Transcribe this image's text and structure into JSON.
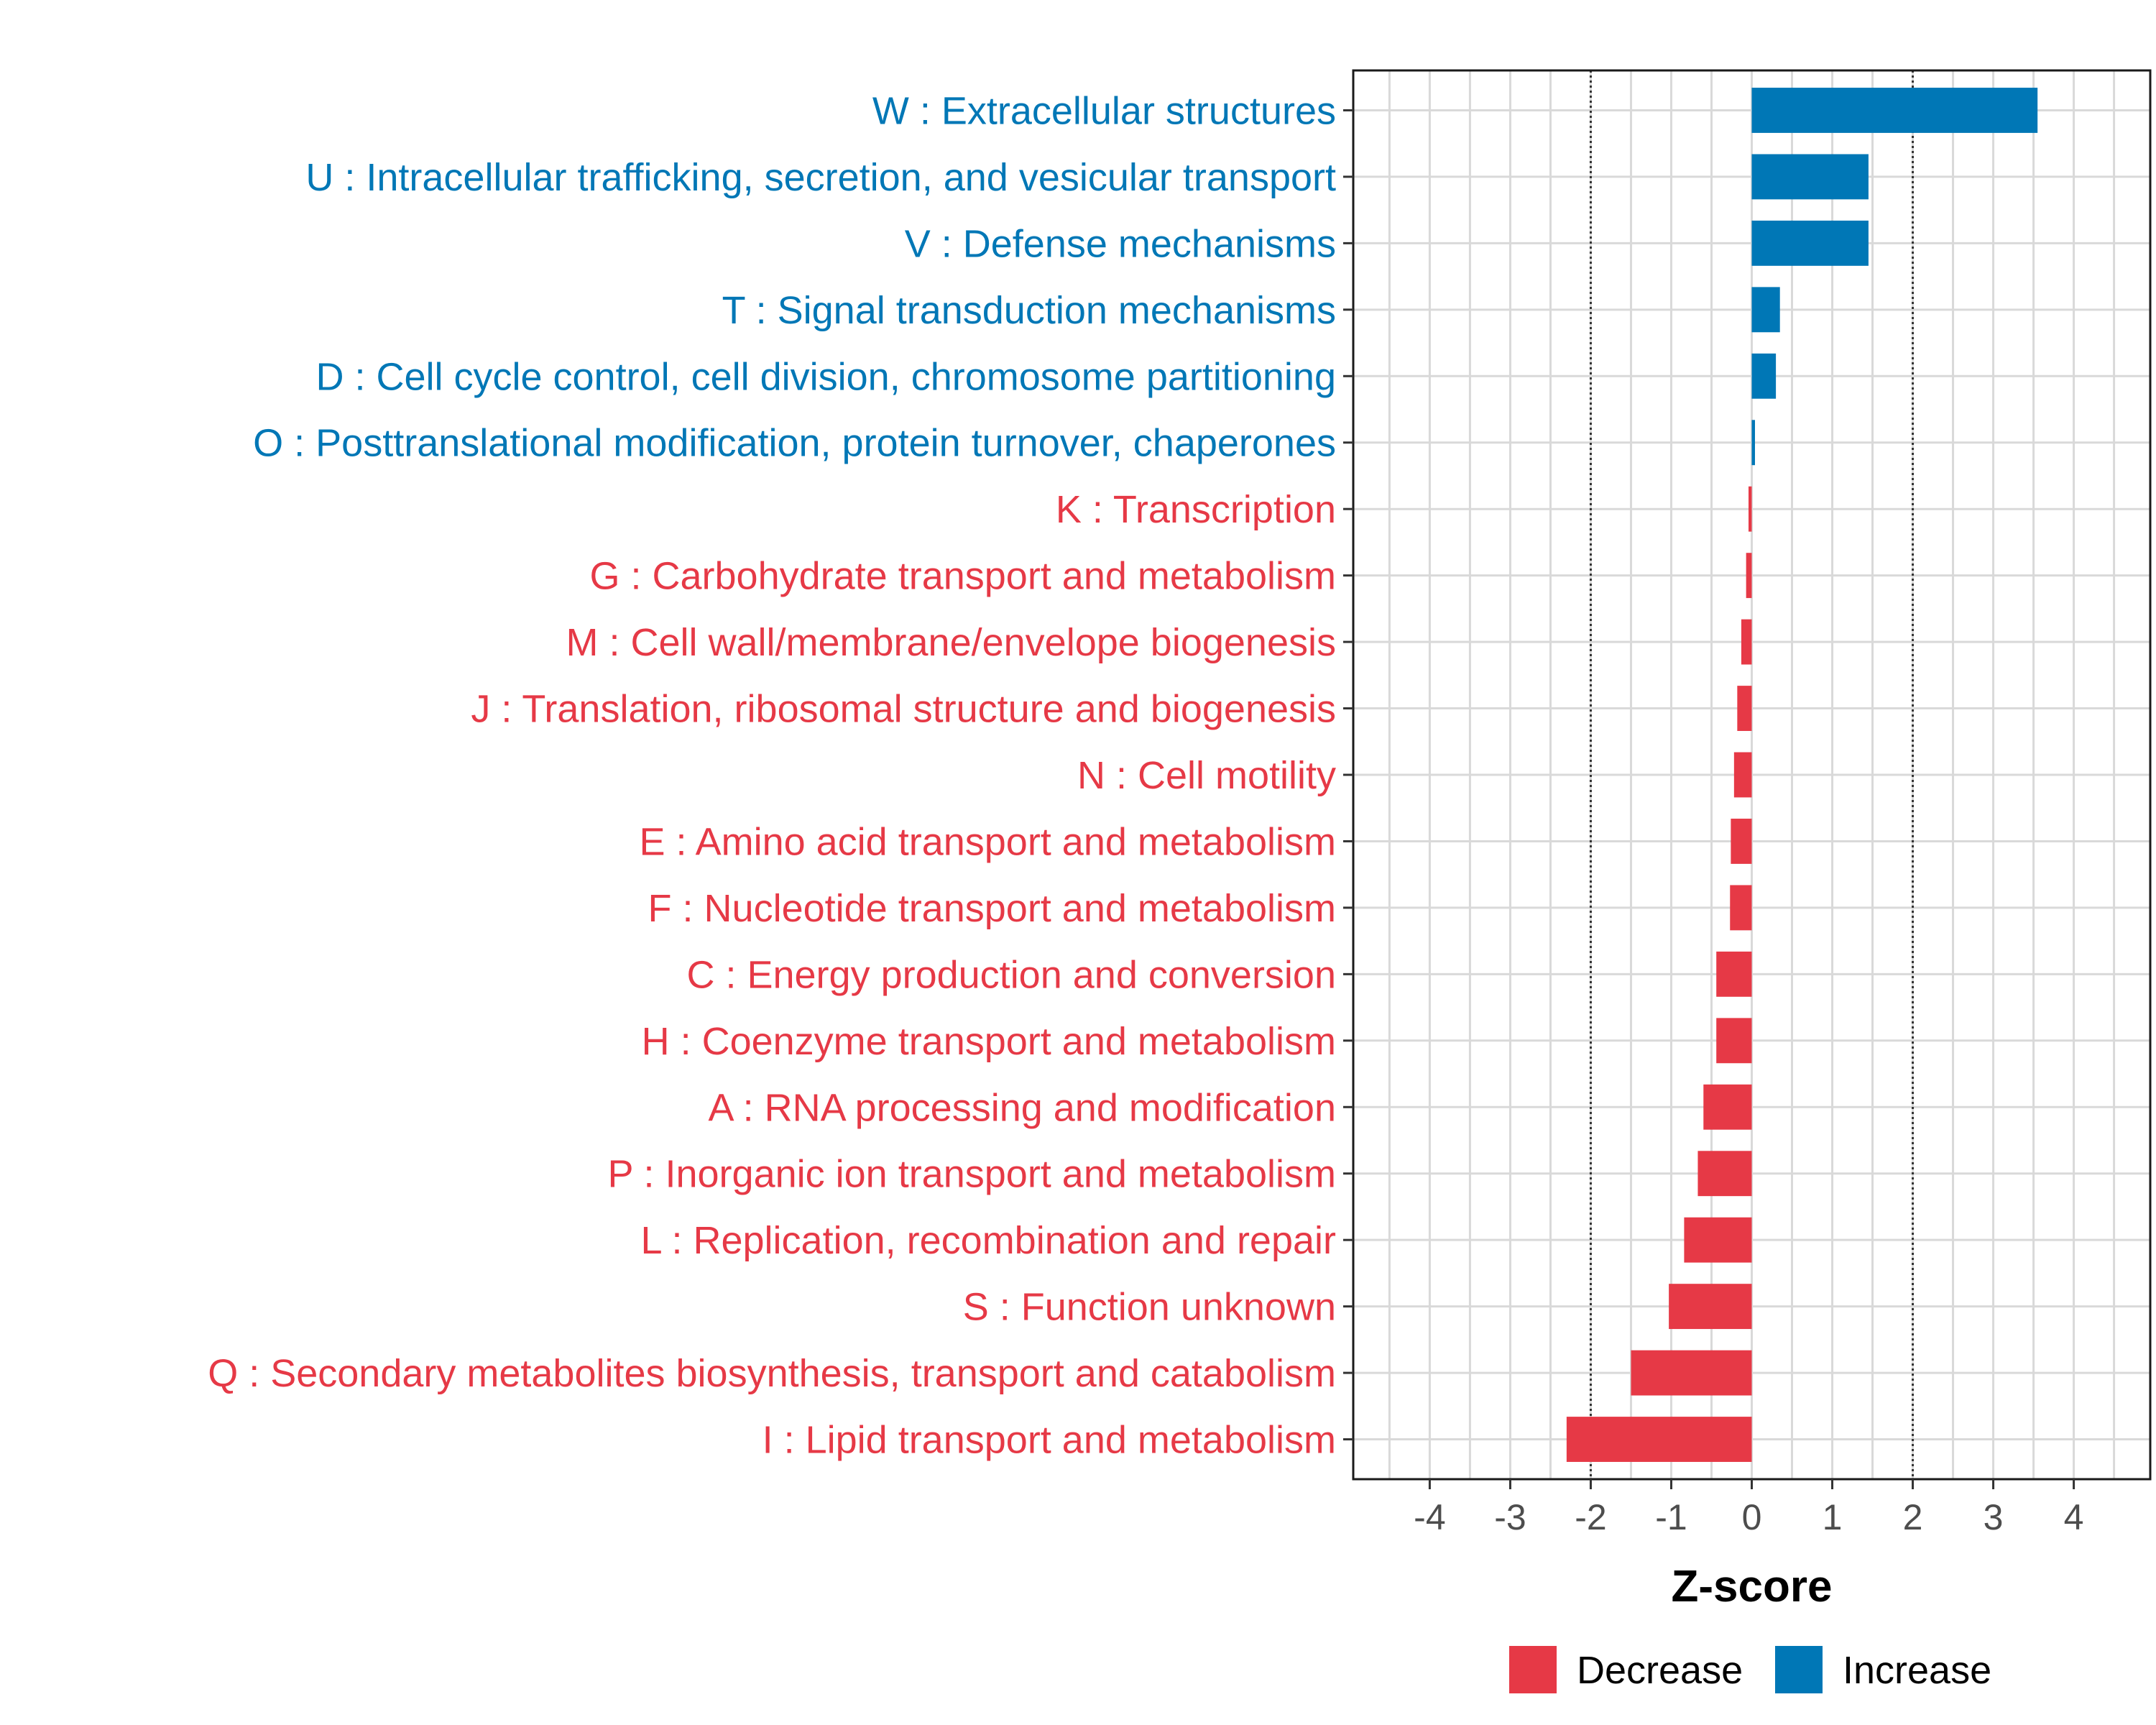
{
  "chart_data": {
    "type": "bar",
    "orientation": "horizontal",
    "xlabel": "Z-score",
    "xlim": [
      -4.95,
      4.95
    ],
    "xticks": [
      -4,
      -3,
      -2,
      -1,
      0,
      1,
      2,
      3,
      4
    ],
    "xtick_labels": [
      "-4",
      "-3",
      "-2",
      "-1",
      "0",
      "1",
      "2",
      "3",
      "4"
    ],
    "reference_lines": [
      -2,
      2
    ],
    "grid": true,
    "categories": [
      "W : Extracellular structures",
      "U : Intracellular trafficking, secretion, and vesicular transport",
      "V : Defense mechanisms",
      "T : Signal transduction mechanisms",
      "D : Cell cycle control, cell division, chromosome partitioning",
      "O : Posttranslational modification, protein turnover, chaperones",
      "K : Transcription",
      "G : Carbohydrate transport and metabolism",
      "M : Cell wall/membrane/envelope biogenesis",
      "J : Translation, ribosomal structure and biogenesis",
      "N : Cell motility",
      "E : Amino acid transport and metabolism",
      "F : Nucleotide transport and metabolism",
      "C : Energy production and conversion",
      "H : Coenzyme transport and metabolism",
      "A : RNA processing and modification",
      "P : Inorganic ion transport and metabolism",
      "L : Replication, recombination and repair",
      "S : Function unknown",
      "Q : Secondary metabolites biosynthesis, transport and catabolism",
      "I : Lipid transport and metabolism"
    ],
    "values": [
      3.55,
      1.45,
      1.45,
      0.35,
      0.3,
      0.04,
      -0.04,
      -0.07,
      -0.13,
      -0.18,
      -0.22,
      -0.26,
      -0.27,
      -0.44,
      -0.44,
      -0.6,
      -0.67,
      -0.84,
      -1.03,
      -1.5,
      -2.3
    ],
    "groups": [
      "Increase",
      "Increase",
      "Increase",
      "Increase",
      "Increase",
      "Increase",
      "Decrease",
      "Decrease",
      "Decrease",
      "Decrease",
      "Decrease",
      "Decrease",
      "Decrease",
      "Decrease",
      "Decrease",
      "Decrease",
      "Decrease",
      "Decrease",
      "Decrease",
      "Decrease",
      "Decrease"
    ],
    "legend": {
      "placement": "bottom-right",
      "entries": [
        {
          "name": "Decrease",
          "color": "#e63946"
        },
        {
          "name": "Increase",
          "color": "#0077b6"
        }
      ]
    },
    "colors": {
      "Decrease": "#e63946",
      "Increase": "#0077b6",
      "grid": "#d9d9d9"
    }
  }
}
